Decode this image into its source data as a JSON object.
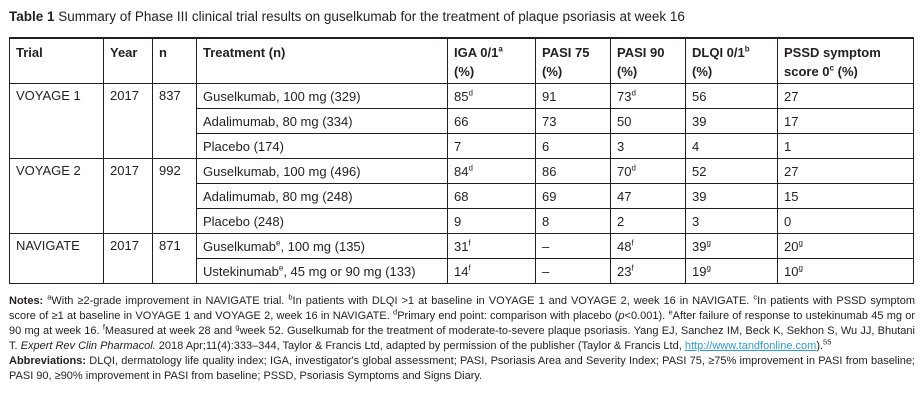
{
  "title": {
    "label": "Table 1",
    "text": "Summary of Phase III clinical trial results on guselkumab for the treatment of plaque psoriasis at week 16"
  },
  "table": {
    "headers": [
      {
        "l1": "Trial",
        "s": "",
        "l2": ""
      },
      {
        "l1": "Year",
        "s": "",
        "l2": ""
      },
      {
        "l1": "n",
        "s": "",
        "l2": ""
      },
      {
        "l1": "Treatment (n)",
        "s": "",
        "l2": ""
      },
      {
        "l1": "IGA 0/1",
        "s": "a",
        "l2": "(%)"
      },
      {
        "l1": "PASI 75",
        "s": "",
        "l2": "(%)"
      },
      {
        "l1": "PASI 90",
        "s": "",
        "l2": "(%)"
      },
      {
        "l1": "DLQI 0/1",
        "s": "b",
        "l2": "(%)"
      },
      {
        "l1": "PSSD symptom",
        "l2": "score 0",
        "s2": "c",
        "l2b": " (%)"
      }
    ],
    "groups": [
      {
        "trial": "VOYAGE 1",
        "year": "2017",
        "n": "837",
        "rows": [
          {
            "t": {
              "pre": "Guselkumab, 100 mg (329)",
              "s": "",
              "post": ""
            },
            "c": [
              {
                "v": "85",
                "s": "d"
              },
              {
                "v": "91",
                "s": ""
              },
              {
                "v": "73",
                "s": "d"
              },
              {
                "v": "56",
                "s": ""
              },
              {
                "v": "27",
                "s": ""
              }
            ]
          },
          {
            "t": {
              "pre": "Adalimumab, 80 mg (334)",
              "s": "",
              "post": ""
            },
            "c": [
              {
                "v": "66",
                "s": ""
              },
              {
                "v": "73",
                "s": ""
              },
              {
                "v": "50",
                "s": ""
              },
              {
                "v": "39",
                "s": ""
              },
              {
                "v": "17",
                "s": ""
              }
            ]
          },
          {
            "t": {
              "pre": "Placebo (174)",
              "s": "",
              "post": ""
            },
            "c": [
              {
                "v": "7",
                "s": ""
              },
              {
                "v": "6",
                "s": ""
              },
              {
                "v": "3",
                "s": ""
              },
              {
                "v": "4",
                "s": ""
              },
              {
                "v": "1",
                "s": ""
              }
            ]
          }
        ]
      },
      {
        "trial": "VOYAGE 2",
        "year": "2017",
        "n": "992",
        "rows": [
          {
            "t": {
              "pre": "Guselkumab, 100 mg (496)",
              "s": "",
              "post": ""
            },
            "c": [
              {
                "v": "84",
                "s": "d"
              },
              {
                "v": "86",
                "s": ""
              },
              {
                "v": "70",
                "s": "d"
              },
              {
                "v": "52",
                "s": ""
              },
              {
                "v": "27",
                "s": ""
              }
            ]
          },
          {
            "t": {
              "pre": "Adalimumab, 80 mg (248)",
              "s": "",
              "post": ""
            },
            "c": [
              {
                "v": "68",
                "s": ""
              },
              {
                "v": "69",
                "s": ""
              },
              {
                "v": "47",
                "s": ""
              },
              {
                "v": "39",
                "s": ""
              },
              {
                "v": "15",
                "s": ""
              }
            ]
          },
          {
            "t": {
              "pre": "Placebo (248)",
              "s": "",
              "post": ""
            },
            "c": [
              {
                "v": "9",
                "s": ""
              },
              {
                "v": "8",
                "s": ""
              },
              {
                "v": "2",
                "s": ""
              },
              {
                "v": "3",
                "s": ""
              },
              {
                "v": "0",
                "s": ""
              }
            ]
          }
        ]
      },
      {
        "trial": "NAVIGATE",
        "year": "2017",
        "n": "871",
        "rows": [
          {
            "t": {
              "pre": "Guselkumab",
              "s": "e",
              "post": ", 100 mg (135)"
            },
            "c": [
              {
                "v": "31",
                "s": "f"
              },
              {
                "v": "–",
                "s": ""
              },
              {
                "v": "48",
                "s": "f"
              },
              {
                "v": "39",
                "s": "g"
              },
              {
                "v": "20",
                "s": "g"
              }
            ]
          },
          {
            "t": {
              "pre": "Ustekinumab",
              "s": "e",
              "post": ", 45 mg or 90 mg (133)"
            },
            "c": [
              {
                "v": "14",
                "s": "f"
              },
              {
                "v": "–",
                "s": ""
              },
              {
                "v": "23",
                "s": "f"
              },
              {
                "v": "19",
                "s": "g"
              },
              {
                "v": "10",
                "s": "g"
              }
            ]
          }
        ]
      }
    ]
  },
  "notes_segments": [
    {
      "t": "Notes: ",
      "bold": true
    },
    {
      "t": "a",
      "sup": true
    },
    {
      "t": "With ≥2-grade improvement in NAVIGATE trial. "
    },
    {
      "t": "b",
      "sup": true
    },
    {
      "t": "In patients with DLQI >1 at baseline in VOYAGE 1 and VOYAGE 2, week 16 in NAVIGATE. "
    },
    {
      "t": "c",
      "sup": true
    },
    {
      "t": "In patients with PSSD symptom score of ≥1 at baseline in VOYAGE 1 and VOYAGE 2, week 16 in NAVIGATE. "
    },
    {
      "t": "d",
      "sup": true
    },
    {
      "t": "Primary end point: comparison with placebo ("
    },
    {
      "t": "p",
      "italic": true
    },
    {
      "t": "<0.001). "
    },
    {
      "t": "e",
      "sup": true
    },
    {
      "t": "After failure of response to ustekinumab 45 mg or 90 mg at week 16. "
    },
    {
      "t": "f",
      "sup": true
    },
    {
      "t": "Measured at week 28 and "
    },
    {
      "t": "g",
      "sup": true
    },
    {
      "t": "week 52. Guselkumab for the treatment of moderate-to-severe plaque psoriasis. Yang EJ, Sanchez IM, Beck K, Sekhon S, Wu JJ, Bhutani T. "
    },
    {
      "t": "Expert Rev Clin Pharmacol.",
      "italic": true
    },
    {
      "t": " 2018 Apr;11(4):333–344, Taylor & Francis Ltd, adapted by permission of the publisher (Taylor & Francis Ltd, "
    },
    {
      "t": "http://www.tandfonline.com",
      "link": true
    },
    {
      "t": ")."
    },
    {
      "t": "55",
      "sup": true
    }
  ],
  "abbrev_segments": [
    {
      "t": "Abbreviations: ",
      "bold": true
    },
    {
      "t": "DLQI, dermatology life quality index; IGA, investigator's global assessment; PASI, Psoriasis Area and Severity Index; PASI 75, ≥75% improvement in PASI from baseline; PASI 90, ≥90% improvement in PASI from baseline; PSSD, Psoriasis Symptoms and Signs Diary."
    }
  ]
}
